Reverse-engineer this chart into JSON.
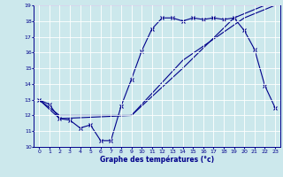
{
  "xlabel": "Graphe des températures (°c)",
  "bg_color": "#cce8ec",
  "line_color": "#00008b",
  "xlim": [
    -0.5,
    23.5
  ],
  "ylim": [
    10,
    19
  ],
  "xticks": [
    0,
    1,
    2,
    3,
    4,
    5,
    6,
    7,
    8,
    9,
    10,
    11,
    12,
    13,
    14,
    15,
    16,
    17,
    18,
    19,
    20,
    21,
    22,
    23
  ],
  "yticks": [
    10,
    11,
    12,
    13,
    14,
    15,
    16,
    17,
    18,
    19
  ],
  "line1_x": [
    0,
    1,
    2,
    3,
    4,
    5,
    6,
    7,
    8,
    9,
    10,
    11,
    12,
    13,
    14,
    15,
    16,
    17,
    18,
    19,
    20,
    21,
    22,
    23
  ],
  "line1_y": [
    13.0,
    12.7,
    11.8,
    11.7,
    11.2,
    11.4,
    10.4,
    10.4,
    12.6,
    14.3,
    16.1,
    17.5,
    18.2,
    18.2,
    18.0,
    18.2,
    18.1,
    18.2,
    18.1,
    18.2,
    17.4,
    16.2,
    13.9,
    12.5
  ],
  "line2_x": [
    0,
    2,
    9,
    14,
    19,
    22,
    23
  ],
  "line2_y": [
    13.0,
    11.8,
    12.0,
    15.0,
    18.2,
    19.0,
    19.0
  ],
  "line3_x": [
    0,
    2,
    9,
    14,
    20,
    23
  ],
  "line3_y": [
    13.0,
    12.0,
    12.0,
    15.5,
    18.2,
    19.0
  ]
}
